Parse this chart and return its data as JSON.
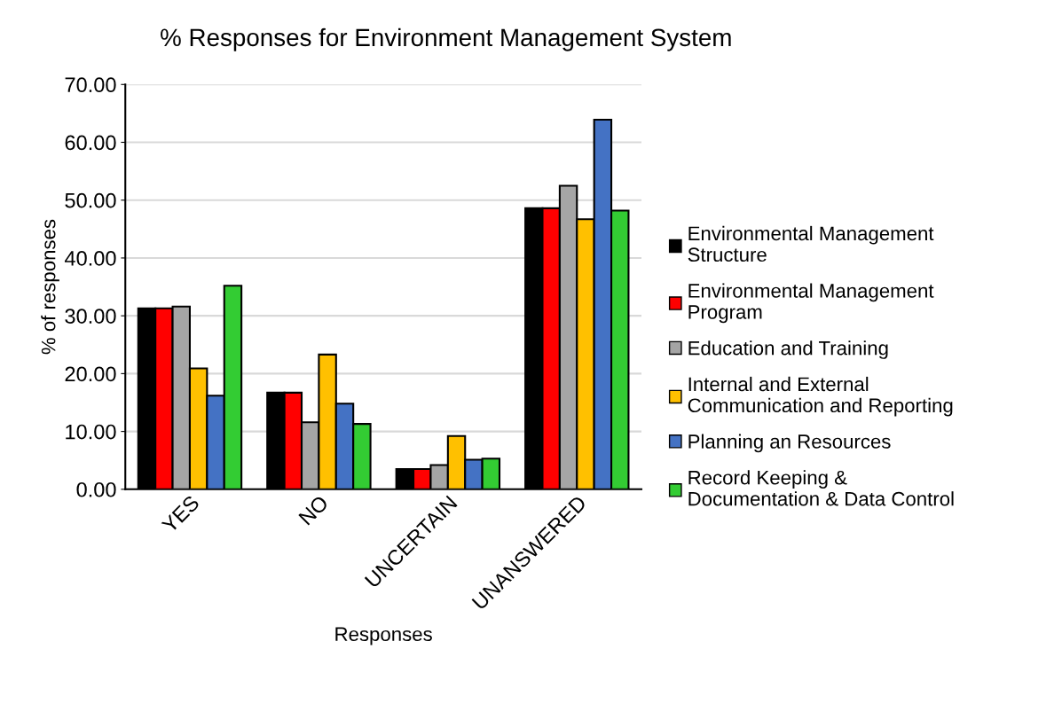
{
  "chart_data": {
    "type": "bar",
    "title": "% Responses for Environment Management System",
    "xlabel": "Responses",
    "ylabel": "% of responses",
    "categories": [
      "YES",
      "NO",
      "UNCERTAIN",
      "UNANSWERED"
    ],
    "series": [
      {
        "name": "Environmental Management\nStructure",
        "color": "#000000",
        "values": [
          31.3,
          16.7,
          3.5,
          48.6
        ]
      },
      {
        "name": "Environmental Management\nProgram",
        "color": "#ff0000",
        "values": [
          31.3,
          16.7,
          3.5,
          48.6
        ]
      },
      {
        "name": "Education and Training",
        "color": "#a5a5a5",
        "values": [
          31.6,
          11.6,
          4.2,
          52.5
        ]
      },
      {
        "name": "Internal and External\nCommunication and Reporting",
        "color": "#ffc000",
        "values": [
          20.9,
          23.3,
          9.2,
          46.7
        ]
      },
      {
        "name": "Planning an Resources",
        "color": "#4472c4",
        "values": [
          16.2,
          14.8,
          5.1,
          63.9
        ]
      },
      {
        "name": "Record Keeping &\nDocumentation & Data Control",
        "color": "#33cc33",
        "values": [
          35.2,
          11.3,
          5.3,
          48.2
        ]
      }
    ],
    "ylim": [
      0,
      70
    ],
    "yticks": [
      {
        "value": 0,
        "label": "0.00"
      },
      {
        "value": 10,
        "label": "10.00"
      },
      {
        "value": 20,
        "label": "20.00"
      },
      {
        "value": 30,
        "label": "30.00"
      },
      {
        "value": 40,
        "label": "40.00"
      },
      {
        "value": 50,
        "label": "50.00"
      },
      {
        "value": 60,
        "label": "60.00"
      },
      {
        "value": 70,
        "label": "70.00"
      }
    ],
    "grid": "y",
    "legend": "right"
  }
}
